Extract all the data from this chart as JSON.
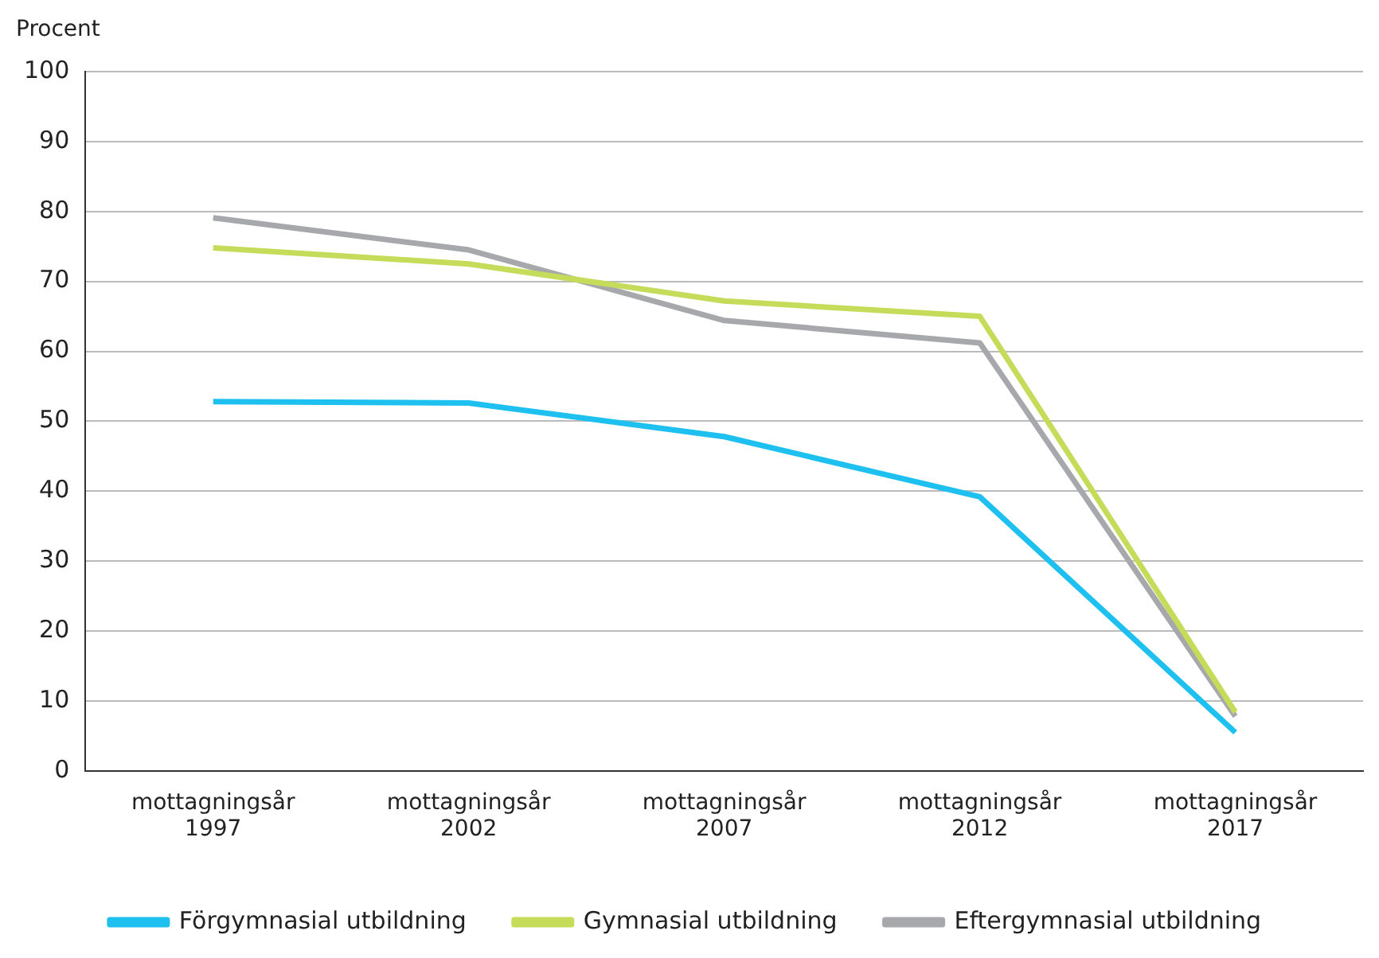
{
  "chart_data": {
    "type": "line",
    "ylabel": "Procent",
    "categories": [
      "mottagningsår 1997",
      "mottagningsår 2002",
      "mottagningsår 2007",
      "mottagningsår 2012",
      "mottagningsår 2017"
    ],
    "series": [
      {
        "name": "Förgymnasial utbildning",
        "color": "#1ec0f0",
        "values": [
          52.8,
          52.6,
          47.8,
          39.2,
          5.5
        ]
      },
      {
        "name": "Gymnasial utbildning",
        "color": "#c5dc5a",
        "values": [
          74.8,
          72.5,
          67.2,
          65.0,
          8.4
        ]
      },
      {
        "name": "Eftergymnasial utbildning",
        "color": "#a6a8ab",
        "values": [
          79.1,
          74.5,
          64.4,
          61.2,
          7.8
        ]
      }
    ],
    "ylim": [
      0,
      100
    ],
    "yticks": [
      0,
      10,
      20,
      30,
      40,
      50,
      60,
      70,
      80,
      90,
      100
    ],
    "grid": "y",
    "legend": "bottom",
    "marker": "none",
    "line_style": "solid"
  }
}
